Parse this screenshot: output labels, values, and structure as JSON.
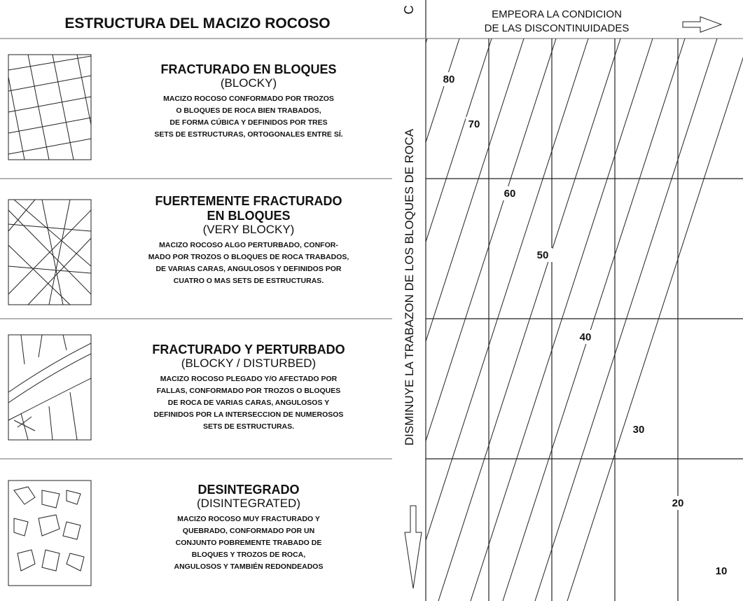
{
  "header": {
    "title": "ESTRUCTURA DEL MACIZO ROCOSO",
    "corner_fragment": "C"
  },
  "top_axis": {
    "lines": [
      "EMPEORA LA CONDICION",
      "DE LAS DISCONTINUIDADES"
    ]
  },
  "side_axis": {
    "label": "DISMINUYE LA TRABAZON DE LOS BLOQUES DE ROCA"
  },
  "rows": [
    {
      "title": [
        "FRACTURADO EN BLOQUES"
      ],
      "subtitle": "(BLOCKY)",
      "description": [
        "MACIZO ROCOSO CONFORMADO POR TROZOS",
        "O BLOQUES DE ROCA  BIEN TRABADOS,",
        "DE FORMA CÚBICA Y DEFINIDOS POR TRES",
        "SETS DE ESTRUCTURAS, ORTOGONALES ENTRE SÍ."
      ]
    },
    {
      "title": [
        "FUERTEMENTE FRACTURADO",
        "EN BLOQUES"
      ],
      "subtitle": "(VERY  BLOCKY)",
      "description": [
        "MACIZO ROCOSO ALGO PERTURBADO, CONFOR-",
        "MADO POR TROZOS O BLOQUES DE ROCA TRABADOS,",
        "DE VARIAS CARAS, ANGULOSOS Y DEFINIDOS POR",
        "CUATRO O MAS SETS DE ESTRUCTURAS."
      ]
    },
    {
      "title": [
        "FRACTURADO Y PERTURBADO"
      ],
      "subtitle": "(BLOCKY / DISTURBED)",
      "description": [
        "MACIZO ROCOSO PLEGADO Y/O AFECTADO  POR",
        "FALLAS, CONFORMADO POR TROZOS O BLOQUES",
        "DE ROCA DE VARIAS CARAS, ANGULOSOS  Y",
        "DEFINIDOS POR LA INTERSECCION DE NUMEROSOS",
        "SETS DE ESTRUCTURAS."
      ]
    },
    {
      "title": [
        "DESINTEGRADO"
      ],
      "subtitle": "(DISINTEGRATED)",
      "description": [
        "MACIZO ROCOSO MUY FRACTURADO Y",
        "QUEBRADO,  CONFORMADO POR UN",
        "CONJUNTO POBREMENTE TRABADO DE",
        "BLOQUES Y TROZOS DE ROCA,",
        "ANGULOSOS Y TAMBIÉN  REDONDEADOS"
      ]
    }
  ],
  "contour_labels": [
    "80",
    "70",
    "60",
    "50",
    "40",
    "30",
    "20",
    "10"
  ]
}
